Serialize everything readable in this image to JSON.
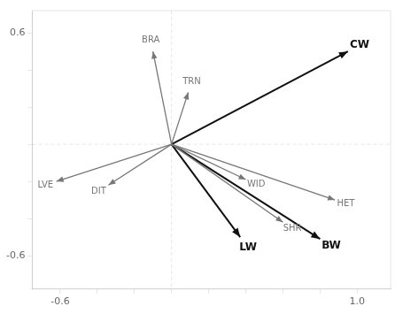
{
  "chart_data": {
    "type": "biplot",
    "series": [
      {
        "color": "#777777",
        "points": [
          {
            "label": "BRA",
            "x": -0.1,
            "y": 0.5
          },
          {
            "label": "TRN",
            "x": 0.09,
            "y": 0.28
          },
          {
            "label": "LVE",
            "x": -0.62,
            "y": -0.2
          },
          {
            "label": "DIT",
            "x": -0.34,
            "y": -0.22
          },
          {
            "label": "WID",
            "x": 0.4,
            "y": -0.19
          },
          {
            "label": "SHR",
            "x": 0.6,
            "y": -0.42
          },
          {
            "label": "HET",
            "x": 0.88,
            "y": -0.3
          }
        ]
      },
      {
        "color": "#111111",
        "points": [
          {
            "label": "CW",
            "x": 0.95,
            "y": 0.5
          },
          {
            "label": "LW",
            "x": 0.37,
            "y": -0.5
          },
          {
            "label": "BW",
            "x": 0.8,
            "y": -0.51
          }
        ]
      }
    ],
    "xlim": [
      -0.75,
      1.18
    ],
    "ylim": [
      -0.78,
      0.72
    ],
    "xticks": [
      -0.6,
      {
        "value": -0.4,
        "label": null
      },
      {
        "value": -0.2,
        "label": null
      },
      {
        "value": 0.0,
        "label": null
      },
      {
        "value": 0.2,
        "label": null
      },
      {
        "value": 0.4,
        "label": null
      },
      {
        "value": 0.6,
        "label": null
      },
      {
        "value": 0.8,
        "label": null
      },
      {
        "value": 1.0,
        "label": "1.0"
      }
    ],
    "yticks": [
      -0.6,
      {
        "value": -0.4,
        "label": null
      },
      {
        "value": -0.2,
        "label": null
      },
      {
        "value": 0.0,
        "label": null
      },
      {
        "value": 0.2,
        "label": null
      },
      {
        "value": 0.4,
        "label": null
      },
      0.6
    ],
    "grid": false
  }
}
